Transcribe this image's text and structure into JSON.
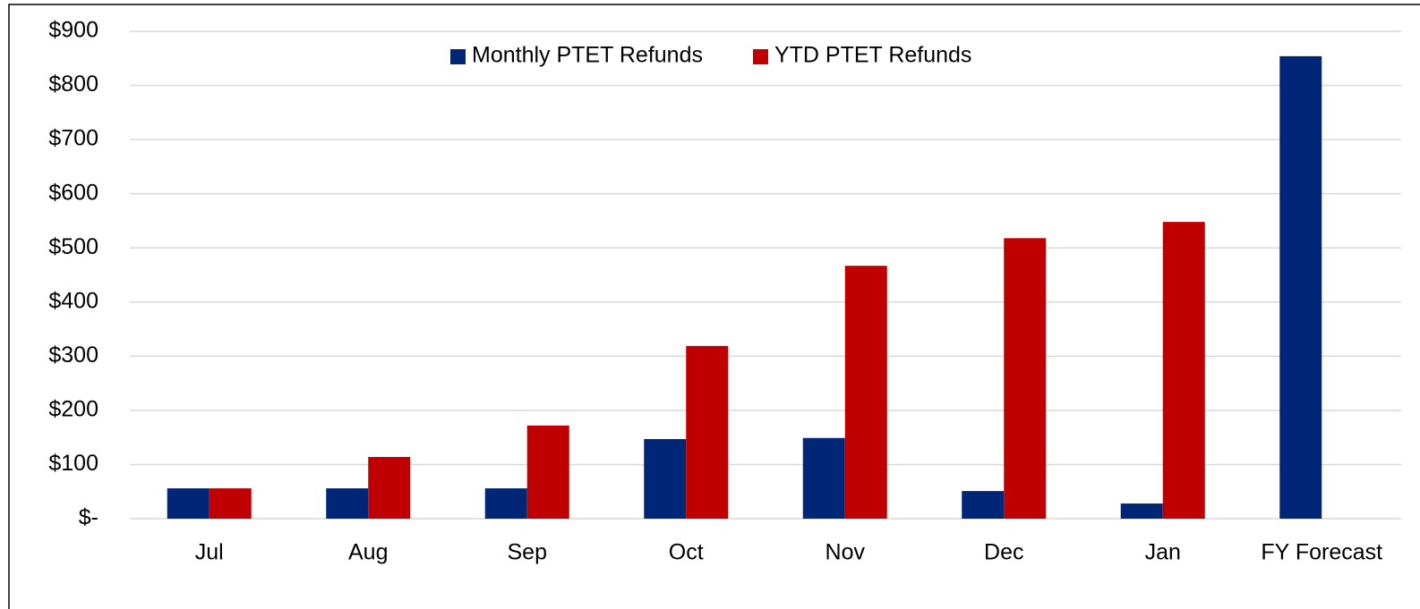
{
  "chart_data": {
    "type": "bar",
    "categories": [
      "Jul",
      "Aug",
      "Sep",
      "Oct",
      "Nov",
      "Dec",
      "Jan",
      "FY Forecast"
    ],
    "series": [
      {
        "name": "Monthly PTET Refunds",
        "color": "#002677",
        "values": [
          56,
          56,
          56,
          147,
          149,
          51,
          28,
          854
        ]
      },
      {
        "name": "YTD PTET Refunds",
        "color": "#c00000",
        "values": [
          56,
          114,
          172,
          319,
          467,
          518,
          548,
          null
        ]
      }
    ],
    "ylim": [
      0,
      900
    ],
    "yticks": [
      {
        "value": 0,
        "label": "$-"
      },
      {
        "value": 100,
        "label": "$100"
      },
      {
        "value": 200,
        "label": "$200"
      },
      {
        "value": 300,
        "label": "$300"
      },
      {
        "value": 400,
        "label": "$400"
      },
      {
        "value": 500,
        "label": "$500"
      },
      {
        "value": 600,
        "label": "$600"
      },
      {
        "value": 700,
        "label": "$700"
      },
      {
        "value": 800,
        "label": "$800"
      },
      {
        "value": 900,
        "label": "$900"
      }
    ],
    "grid": true,
    "legend": "top"
  }
}
